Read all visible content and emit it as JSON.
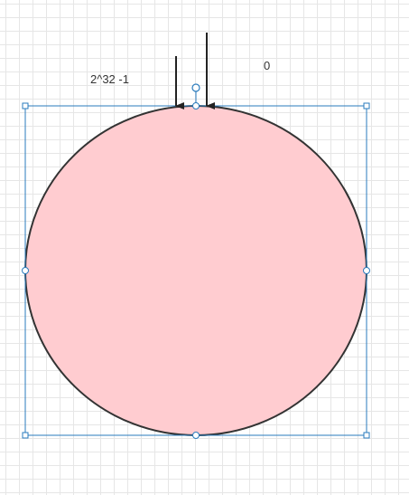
{
  "labels": {
    "left": "2^32 -1",
    "right": "0"
  },
  "colors": {
    "circle_fill": "#ffccd0",
    "circle_stroke": "#333333",
    "selection": "#2a7bbd",
    "arrow": "#222222",
    "grid": "#e6e6e6"
  }
}
